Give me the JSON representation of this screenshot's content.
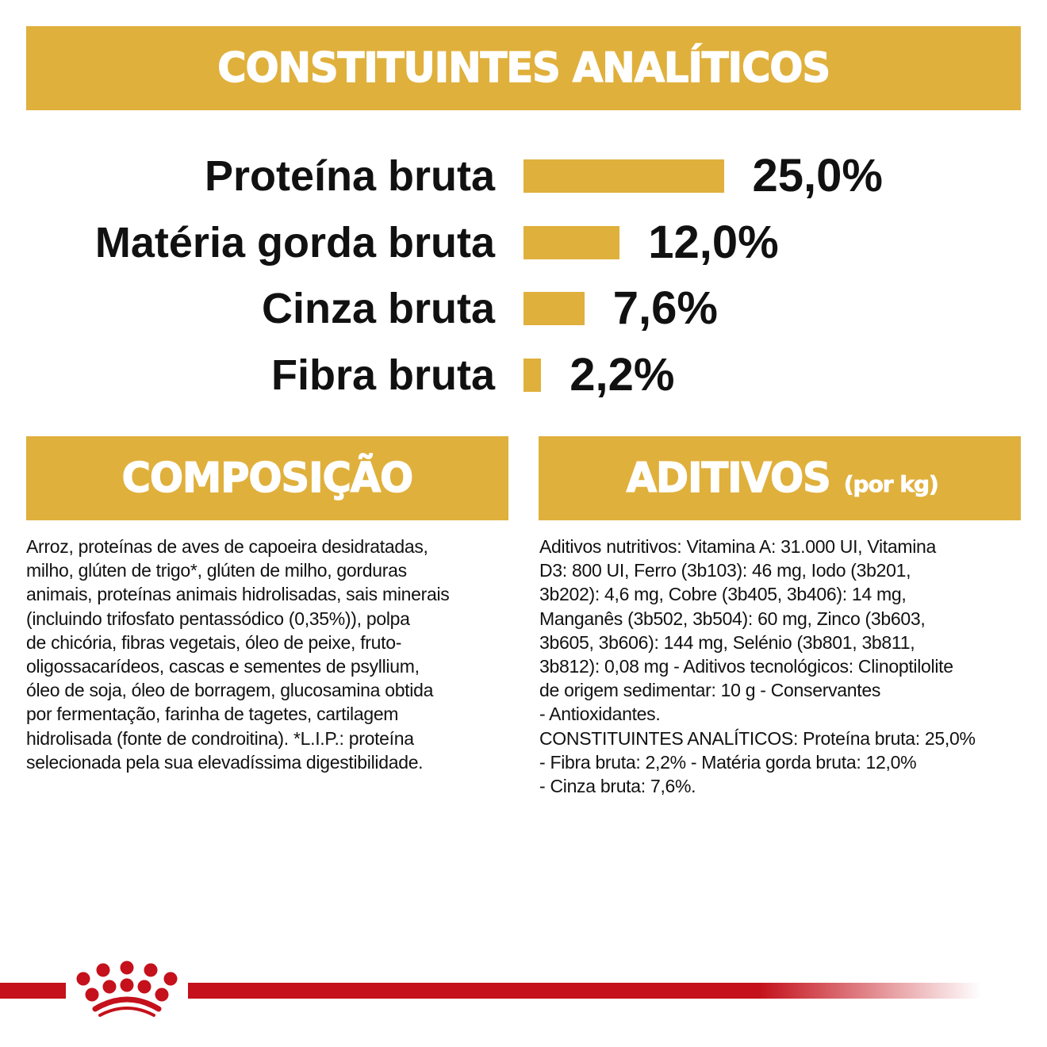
{
  "colors": {
    "gold": "#e0b03c",
    "red": "#c4111b"
  },
  "header": {
    "title": "CONSTITUINTES ANALÍTICOS"
  },
  "analytics": [
    {
      "label": "Proteína bruta",
      "value": 25.0,
      "display": "25,0%"
    },
    {
      "label": "Matéria gorda bruta",
      "value": 12.0,
      "display": "12,0%"
    },
    {
      "label": "Cinza bruta",
      "value": 7.6,
      "display": "7,6%"
    },
    {
      "label": "Fibra bruta",
      "value": 2.2,
      "display": "2,2%"
    }
  ],
  "composition": {
    "title": "COMPOSIÇÃO",
    "lines": [
      "Arroz, proteínas de aves de capoeira desidratadas,",
      "milho, glúten de trigo*, glúten de milho, gorduras",
      "animais, proteínas animais hidrolisadas, sais minerais",
      "(incluindo trifosfato pentassódico (0,35%)), polpa",
      "de chicória, fibras vegetais, óleo de peixe, fruto-",
      "oligossacarídeos, cascas e sementes de psyllium,",
      "óleo de soja, óleo de borragem, glucosamina obtida",
      "por fermentação, farinha de tagetes, cartilagem",
      "hidrolisada (fonte de condroitina). *L.I.P.: proteína",
      "selecionada pela sua elevadíssima digestibilidade."
    ]
  },
  "additives": {
    "title": "ADITIVOS",
    "subtitle": "(por kg)",
    "lines": [
      "Aditivos nutritivos: Vitamina A: 31.000 UI, Vitamina",
      "D3: 800 UI, Ferro (3b103): 46 mg, Iodo (3b201,",
      "3b202): 4,6 mg, Cobre (3b405, 3b406): 14 mg,",
      "Manganês (3b502, 3b504): 60 mg, Zinco (3b603,",
      "3b605, 3b606): 144 mg, Selénio (3b801, 3b811,",
      "3b812): 0,08 mg - Aditivos tecnológicos: Clinoptilolite",
      "de origem sedimentar: 10 g - Conservantes",
      "- Antioxidantes.",
      "CONSTITUINTES ANALÍTICOS: Proteína bruta: 25,0%",
      "- Fibra bruta: 2,2% - Matéria gorda bruta: 12,0%",
      "- Cinza bruta: 7,6%."
    ]
  },
  "footer": {
    "logo": "royal-canin-crown"
  }
}
